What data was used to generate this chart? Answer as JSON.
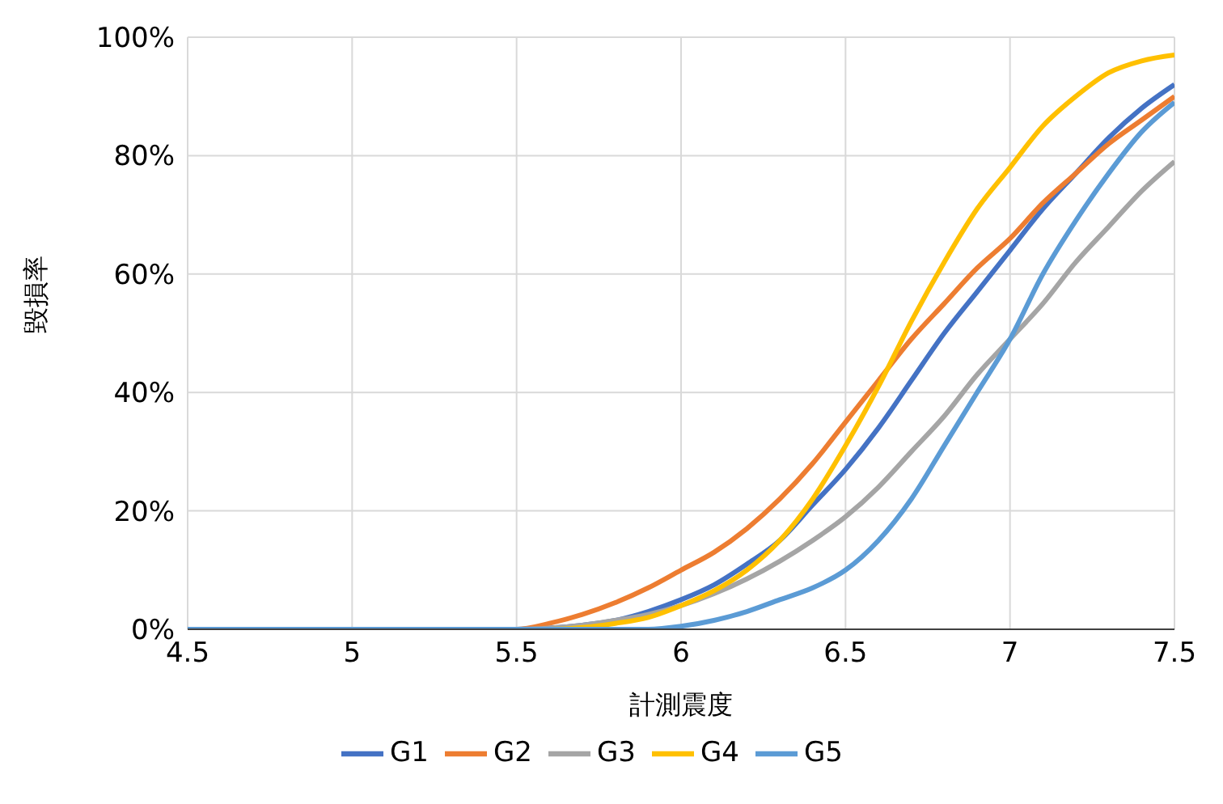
{
  "chart_data": {
    "type": "line",
    "xlabel": "計測震度",
    "ylabel": "毀損率",
    "x": [
      4.5,
      5.5,
      5.6,
      5.7,
      5.8,
      5.9,
      6.0,
      6.1,
      6.2,
      6.3,
      6.4,
      6.5,
      6.6,
      6.7,
      6.8,
      6.9,
      7.0,
      7.1,
      7.2,
      7.3,
      7.4,
      7.5
    ],
    "series": [
      {
        "name": "G1",
        "color": "#4472c4",
        "values": [
          0,
          0,
          0.2,
          0.7,
          1.5,
          3,
          5,
          7.5,
          11,
          15,
          21,
          27,
          34,
          42,
          50,
          57,
          64,
          71,
          77,
          83,
          88,
          92
        ]
      },
      {
        "name": "G2",
        "color": "#ed7d31",
        "values": [
          0,
          0,
          1,
          2.5,
          4.5,
          7,
          10,
          13,
          17,
          22,
          28,
          35,
          42,
          49,
          55,
          61,
          66,
          72,
          77,
          82,
          86,
          90
        ]
      },
      {
        "name": "G3",
        "color": "#a5a5a5",
        "values": [
          0,
          0,
          0.2,
          0.7,
          1.5,
          2.5,
          4,
          6,
          8.5,
          11.5,
          15,
          19,
          24,
          30,
          36,
          43,
          49,
          55,
          62,
          68,
          74,
          79
        ]
      },
      {
        "name": "G4",
        "color": "#ffc000",
        "values": [
          0,
          0,
          0,
          0.3,
          1,
          2,
          4,
          6.5,
          10,
          15,
          22,
          31,
          41,
          52,
          62,
          71,
          78,
          85,
          90,
          94,
          96,
          97
        ]
      },
      {
        "name": "G5",
        "color": "#5b9bd5",
        "values": [
          0,
          0,
          0,
          0,
          0,
          0,
          0.5,
          1.5,
          3,
          5,
          7,
          10,
          15,
          22,
          31,
          40,
          49,
          60,
          69,
          77,
          84,
          89
        ]
      }
    ],
    "xlim": [
      4.5,
      7.5
    ],
    "xticks": [
      4.5,
      5,
      5.5,
      6,
      6.5,
      7,
      7.5
    ],
    "ylim": [
      0,
      100
    ],
    "yticks": [
      {
        "value": 0,
        "label": "0%"
      },
      {
        "value": 20,
        "label": "20%"
      },
      {
        "value": 40,
        "label": "40%"
      },
      {
        "value": 60,
        "label": "60%"
      },
      {
        "value": 80,
        "label": "80%"
      },
      {
        "value": 100,
        "label": "100%"
      }
    ],
    "grid": true,
    "legend": "bottom",
    "marker": "none",
    "line_style": "solid"
  }
}
